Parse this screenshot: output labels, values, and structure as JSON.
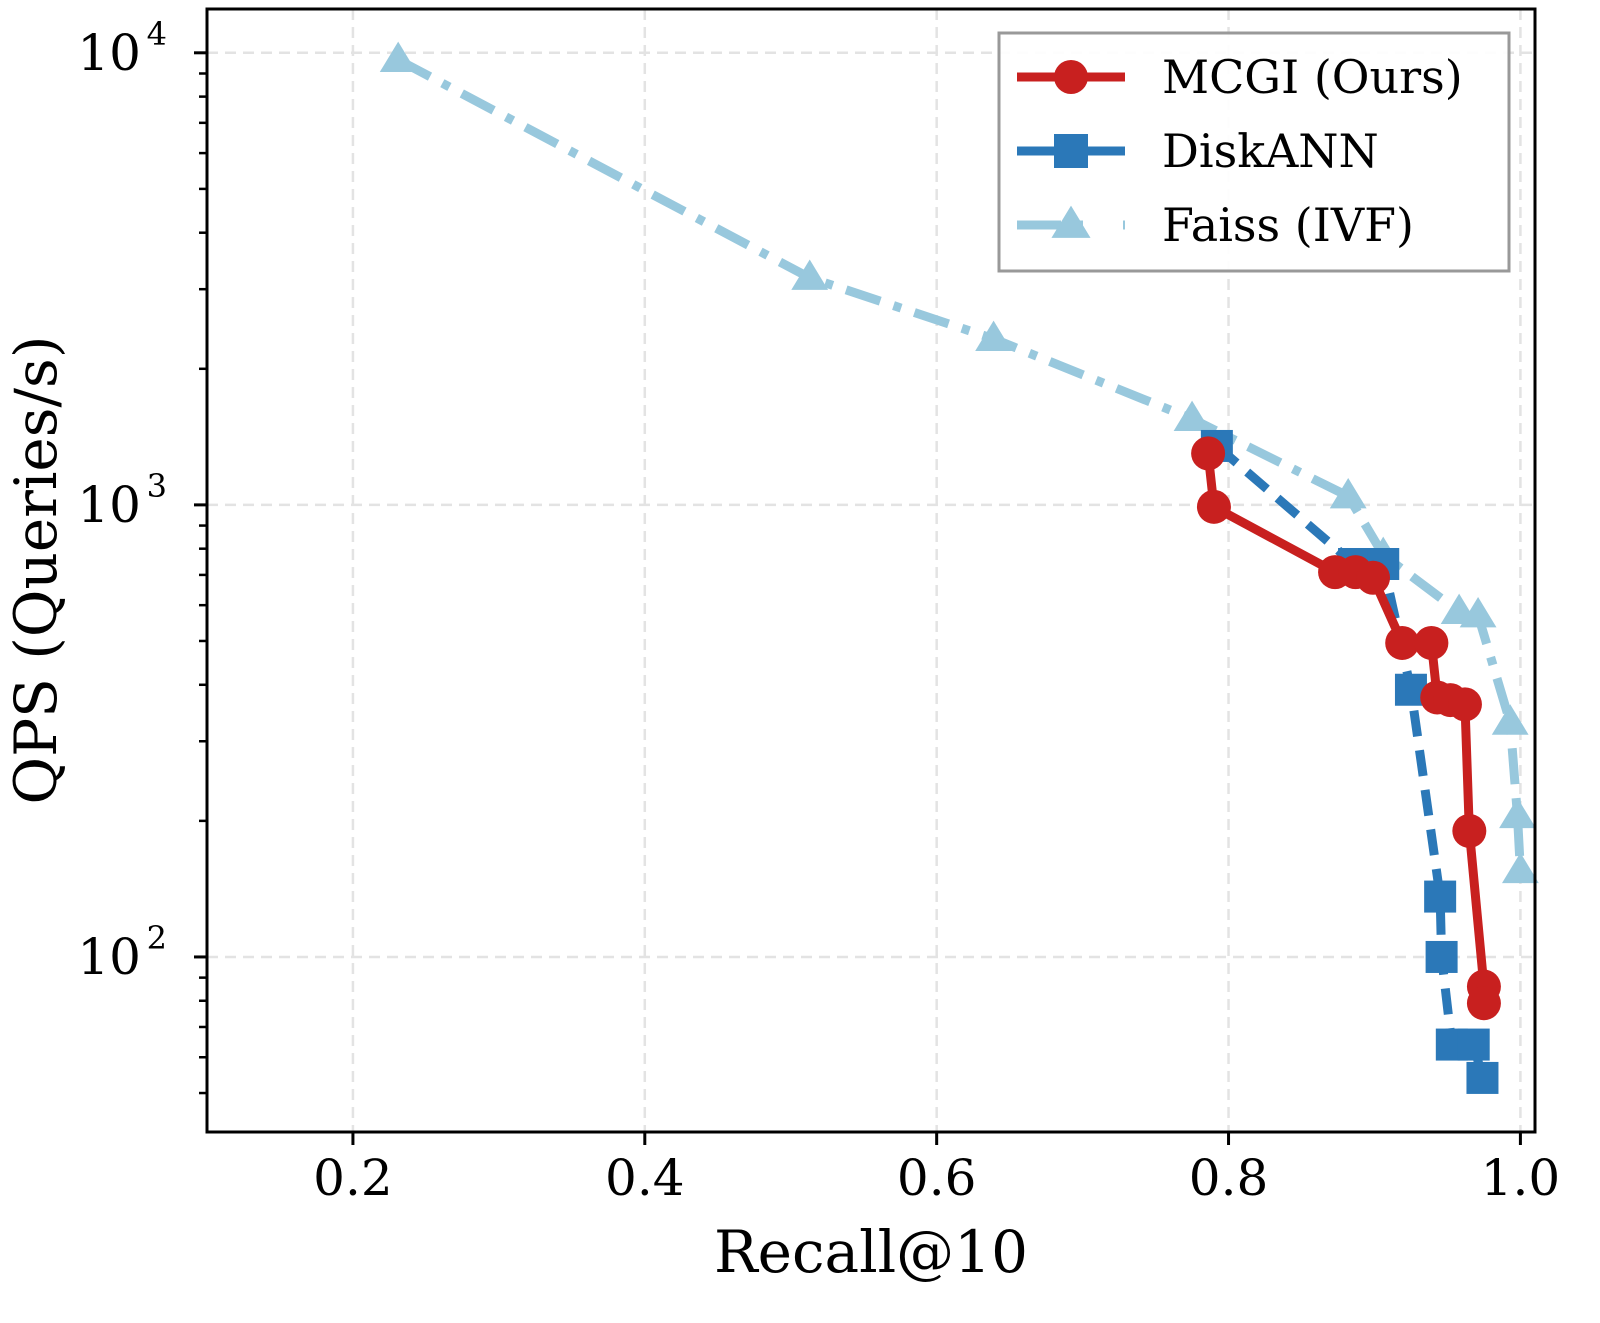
{
  "chart_data": {
    "type": "line",
    "title": "",
    "xlabel": "Recall@10",
    "ylabel": "QPS (Queries/s)",
    "xscale": "linear",
    "yscale": "log",
    "xlim": [
      0.1,
      1.01
    ],
    "ylim": [
      41,
      12500
    ],
    "xticks": [
      0.2,
      0.4,
      0.6,
      0.8,
      1.0
    ],
    "xtick_labels": [
      "0.2",
      "0.4",
      "0.6",
      "0.8",
      "1.0"
    ],
    "yticks": [
      100,
      1000,
      10000
    ],
    "ytick_labels": [
      {
        "base": "10",
        "exp": "2"
      },
      {
        "base": "10",
        "exp": "3"
      },
      {
        "base": "10",
        "exp": "4"
      }
    ],
    "grid": true,
    "legend": {
      "position": "top-right"
    },
    "series": [
      {
        "name": "MCGI (Ours)",
        "color": "#c8201f",
        "marker": "circle",
        "linestyle": "solid",
        "x": [
          0.786,
          0.79,
          0.873,
          0.887,
          0.899,
          0.919,
          0.939,
          0.943,
          0.952,
          0.962,
          0.965,
          0.975,
          0.975
        ],
        "y": [
          1300,
          990,
          710,
          710,
          690,
          495,
          495,
          375,
          370,
          362,
          190,
          86,
          79
        ]
      },
      {
        "name": "DiskANN",
        "color": "#2b78b8",
        "marker": "square",
        "linestyle": "dashed",
        "x": [
          0.792,
          0.886,
          0.906,
          0.925,
          0.945,
          0.946,
          0.953,
          0.968,
          0.974
        ],
        "y": [
          1350,
          740,
          740,
          390,
          136,
          100,
          64,
          64,
          54
        ]
      },
      {
        "name": "Faiss (IVF)",
        "color": "#98c8dd",
        "marker": "triangle",
        "linestyle": "dashdot",
        "x": [
          0.231,
          0.513,
          0.639,
          0.775,
          0.882,
          0.906,
          0.958,
          0.971,
          0.993,
          0.998,
          1.0
        ],
        "y": [
          9650,
          3180,
          2330,
          1550,
          1045,
          775,
          580,
          570,
          330,
          205,
          155
        ]
      }
    ]
  }
}
